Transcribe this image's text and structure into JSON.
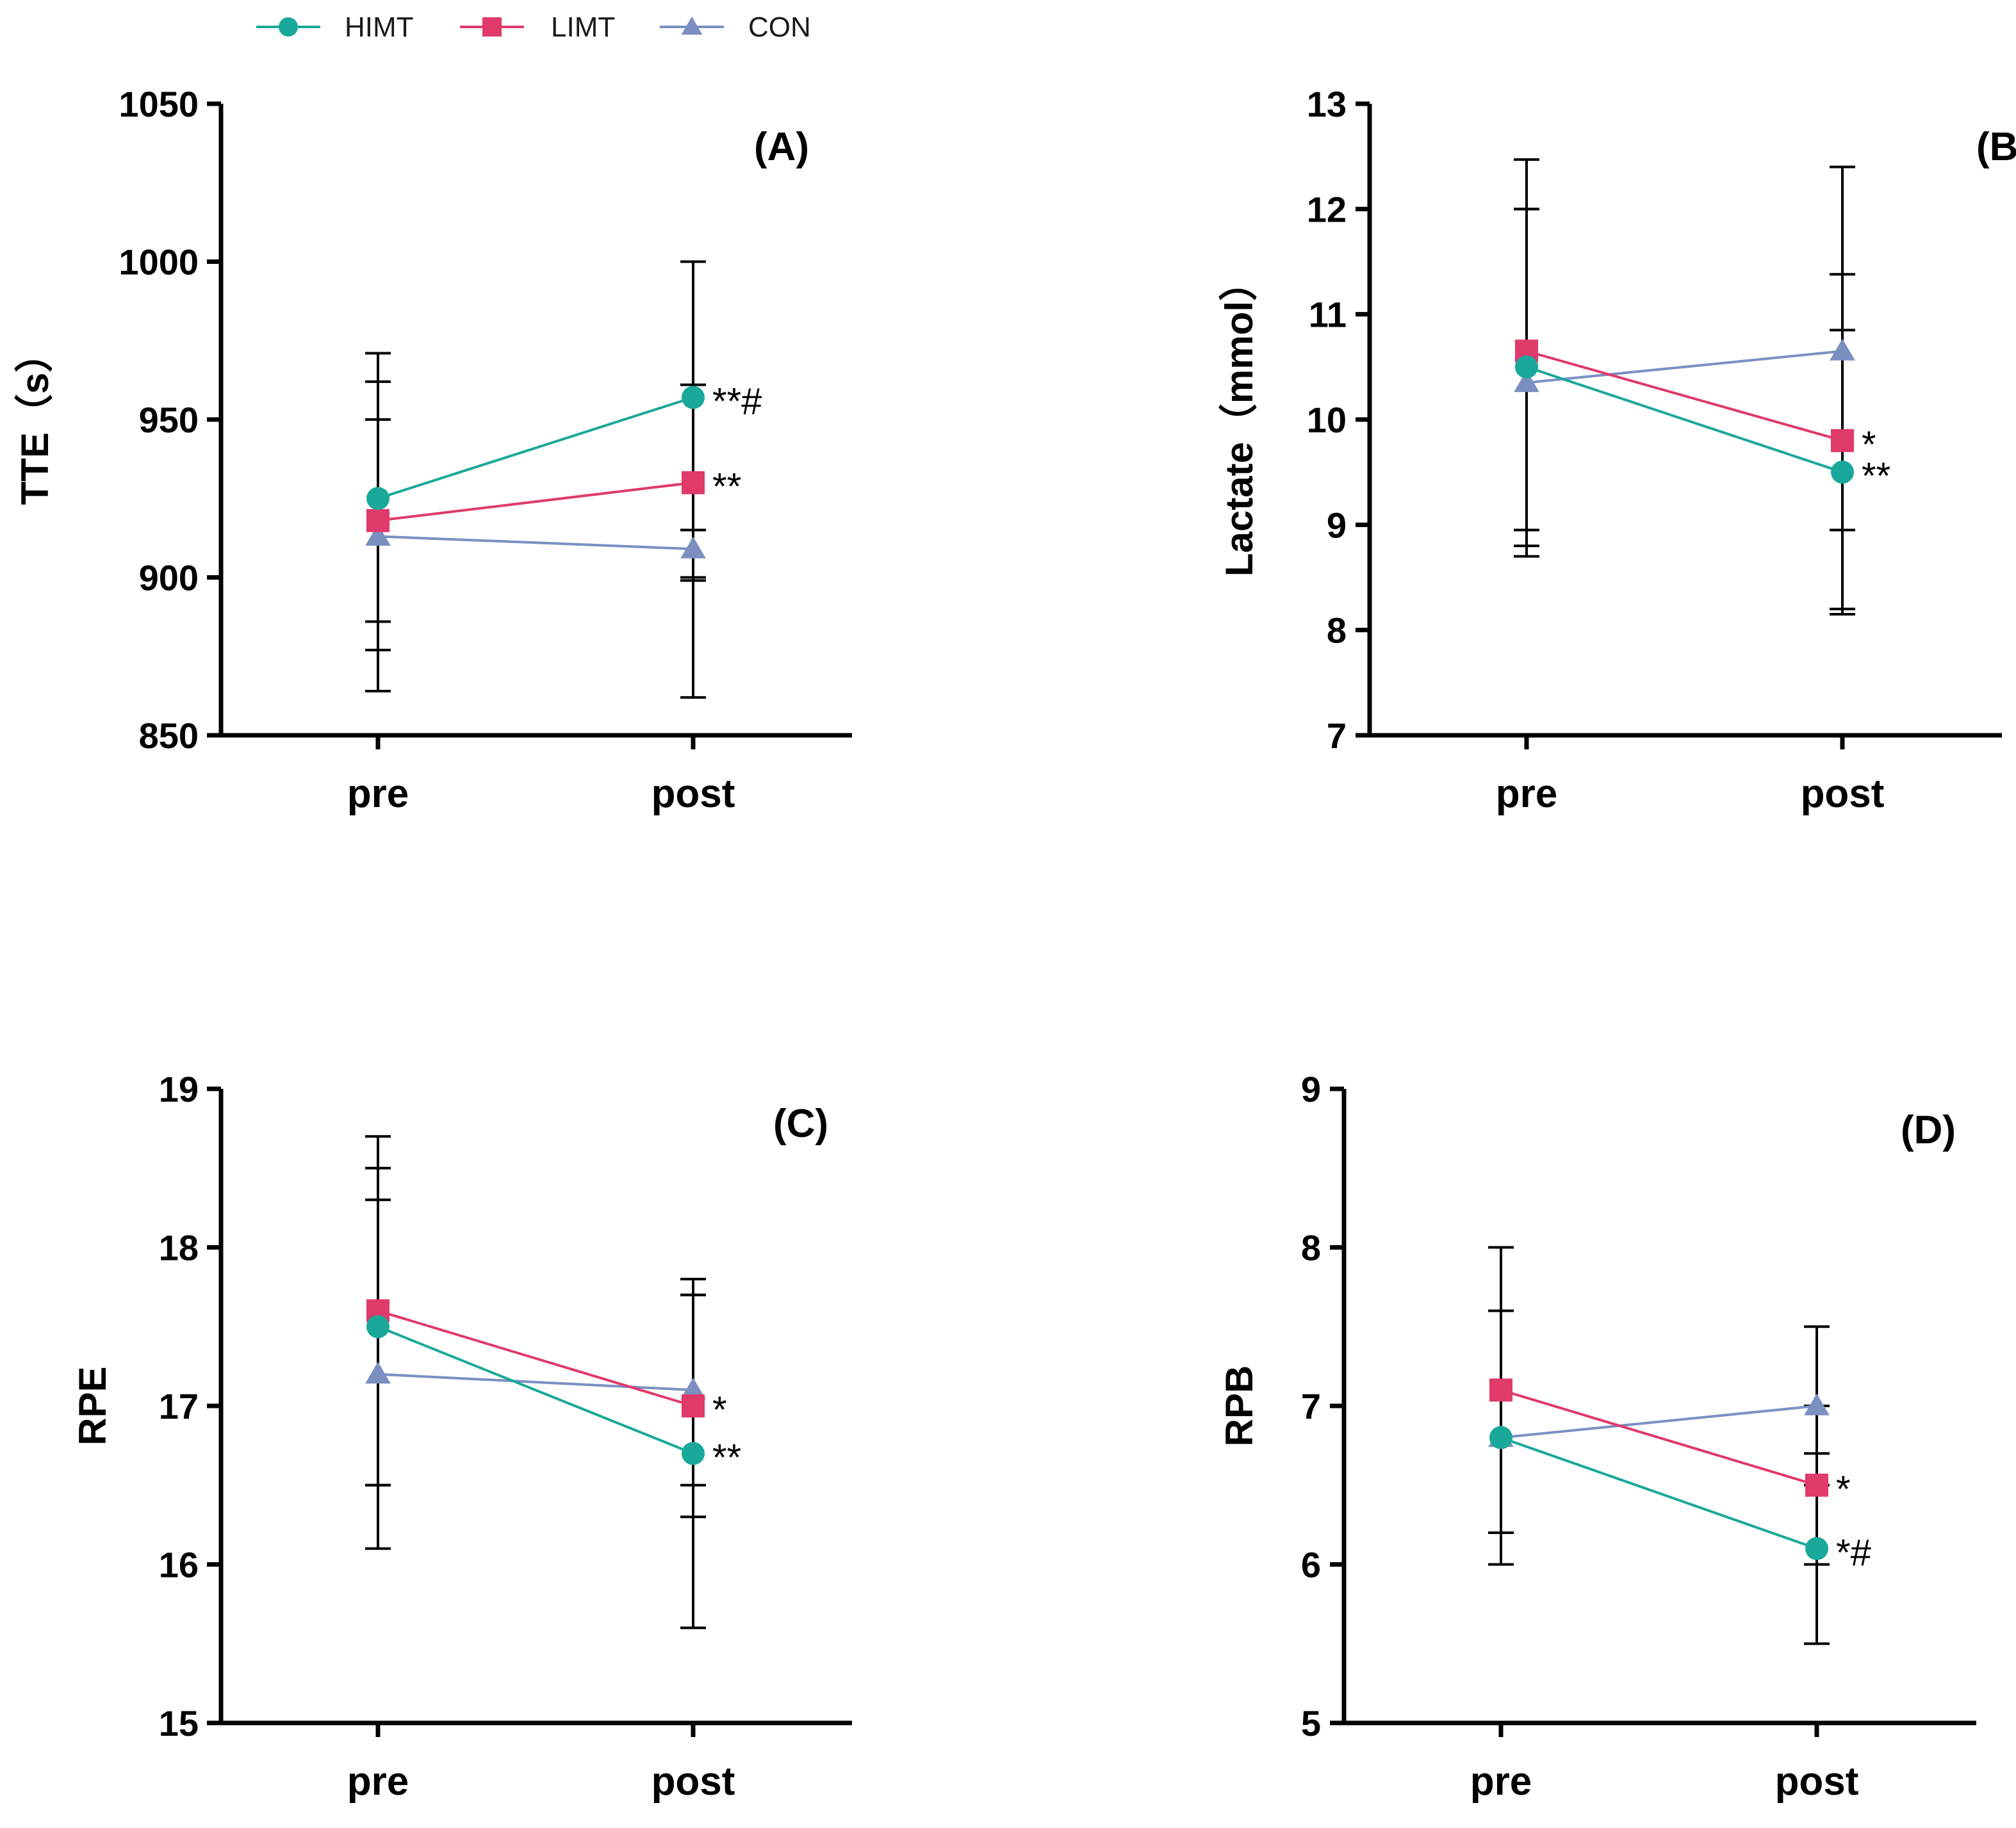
{
  "legend": [
    {
      "name": "HIMT",
      "marker": "circle",
      "color": "#1aa89a"
    },
    {
      "name": "LIMT",
      "marker": "square",
      "color": "#e03a6a"
    },
    {
      "name": "CON",
      "marker": "triangle",
      "color": "#7b8fc0"
    }
  ],
  "chart_data": [
    {
      "type": "line",
      "panel": "(A)",
      "ylabel": "TTE（s）",
      "categories": [
        "pre",
        "post"
      ],
      "ylim": [
        850,
        1050
      ],
      "yticks": [
        850,
        900,
        950,
        1000,
        1050
      ],
      "series": [
        {
          "name": "HIMT",
          "values": [
            925,
            957
          ],
          "err_low": [
            864,
            900
          ],
          "err_high": [
            971,
            1000
          ],
          "annotations": [
            "",
            "**#"
          ]
        },
        {
          "name": "LIMT",
          "values": [
            918,
            930
          ],
          "err_low": [
            877,
            899
          ],
          "err_high": [
            962,
            961
          ],
          "annotations": [
            "",
            "**"
          ]
        },
        {
          "name": "CON",
          "values": [
            913,
            909
          ],
          "err_low": [
            886,
            862
          ],
          "err_high": [
            950,
            915
          ],
          "annotations": [
            "",
            ""
          ]
        }
      ]
    },
    {
      "type": "line",
      "panel": "(B)",
      "ylabel": "Lactate（mmol）",
      "categories": [
        "pre",
        "post"
      ],
      "ylim": [
        7,
        13
      ],
      "yticks": [
        7,
        8,
        9,
        10,
        11,
        12,
        13
      ],
      "series": [
        {
          "name": "HIMT",
          "values": [
            10.5,
            9.5
          ],
          "err_low": [
            8.8,
            8.2
          ],
          "err_high": [
            12.0,
            10.85
          ],
          "annotations": [
            "",
            "**"
          ]
        },
        {
          "name": "LIMT",
          "values": [
            10.65,
            9.8
          ],
          "err_low": [
            8.7,
            8.15
          ],
          "err_high": [
            12.47,
            11.38
          ],
          "annotations": [
            "",
            "*"
          ]
        },
        {
          "name": "CON",
          "values": [
            10.35,
            10.65
          ],
          "err_low": [
            8.95,
            8.95
          ],
          "err_high": [
            12.0,
            12.4
          ],
          "annotations": [
            "",
            ""
          ]
        }
      ]
    },
    {
      "type": "line",
      "panel": "(C)",
      "ylabel": "RPE",
      "categories": [
        "pre",
        "post"
      ],
      "ylim": [
        15,
        19
      ],
      "yticks": [
        15,
        16,
        17,
        18,
        19
      ],
      "series": [
        {
          "name": "HIMT",
          "values": [
            17.5,
            16.7
          ],
          "err_low": [
            16.1,
            15.6
          ],
          "err_high": [
            18.7,
            17.7
          ],
          "annotations": [
            "",
            "**"
          ]
        },
        {
          "name": "LIMT",
          "values": [
            17.6,
            17.0
          ],
          "err_low": [
            16.5,
            16.3
          ],
          "err_high": [
            18.5,
            17.8
          ],
          "annotations": [
            "",
            "*"
          ]
        },
        {
          "name": "CON",
          "values": [
            17.2,
            17.1
          ],
          "err_low": [
            16.5,
            16.5
          ],
          "err_high": [
            18.3,
            17.7
          ],
          "annotations": [
            "",
            ""
          ]
        }
      ]
    },
    {
      "type": "line",
      "panel": "(D)",
      "ylabel": "RPB",
      "categories": [
        "pre",
        "post"
      ],
      "ylim": [
        5,
        9
      ],
      "yticks": [
        5,
        6,
        7,
        8,
        9
      ],
      "series": [
        {
          "name": "HIMT",
          "values": [
            6.8,
            6.1
          ],
          "err_low": [
            6.0,
            5.5
          ],
          "err_high": [
            7.6,
            6.7
          ],
          "annotations": [
            "",
            "*#"
          ]
        },
        {
          "name": "LIMT",
          "values": [
            7.1,
            6.5
          ],
          "err_low": [
            6.2,
            6.0
          ],
          "err_high": [
            8.0,
            7.0
          ],
          "annotations": [
            "",
            "*"
          ]
        },
        {
          "name": "CON",
          "values": [
            6.8,
            7.0
          ],
          "err_low": [
            6.0,
            6.5
          ],
          "err_high": [
            7.6,
            7.5
          ],
          "annotations": [
            "",
            ""
          ]
        }
      ]
    }
  ]
}
